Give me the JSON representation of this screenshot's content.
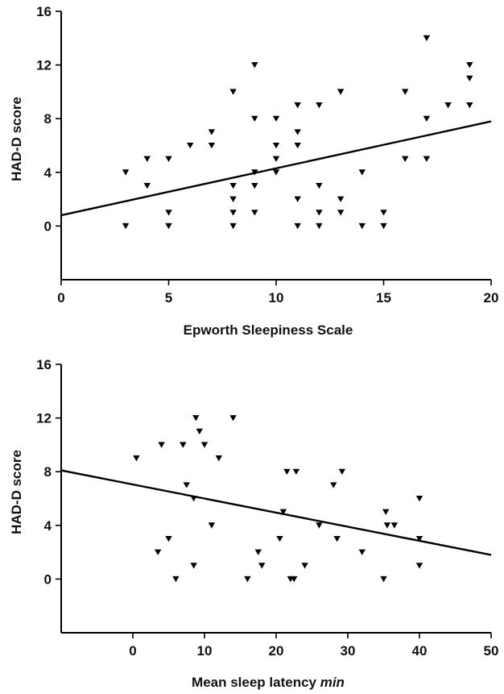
{
  "chart_data": [
    {
      "type": "scatter",
      "xlabel": "Epworth Sleepiness Scale",
      "ylabel": "HAD-D score",
      "xlim": [
        0,
        20
      ],
      "ylim": [
        -4,
        16
      ],
      "xticks": [
        0,
        5,
        10,
        15,
        20
      ],
      "yticks": [
        0,
        4,
        8,
        12,
        16
      ],
      "marker": "triangle-down",
      "grid": false,
      "points": [
        [
          3,
          4
        ],
        [
          3,
          0
        ],
        [
          4,
          5
        ],
        [
          4,
          3
        ],
        [
          5,
          5
        ],
        [
          5,
          1
        ],
        [
          5,
          0
        ],
        [
          6,
          6
        ],
        [
          7,
          7
        ],
        [
          7,
          6
        ],
        [
          8,
          10
        ],
        [
          8,
          3
        ],
        [
          8,
          2
        ],
        [
          8,
          1
        ],
        [
          8,
          0
        ],
        [
          9,
          12
        ],
        [
          9,
          8
        ],
        [
          9,
          4
        ],
        [
          9,
          3
        ],
        [
          9,
          1
        ],
        [
          10,
          8
        ],
        [
          10,
          6
        ],
        [
          10,
          5
        ],
        [
          10,
          4
        ],
        [
          11,
          9
        ],
        [
          11,
          7
        ],
        [
          11,
          6
        ],
        [
          11,
          2
        ],
        [
          11,
          0
        ],
        [
          12,
          9
        ],
        [
          12,
          3
        ],
        [
          12,
          1
        ],
        [
          12,
          0
        ],
        [
          13,
          10
        ],
        [
          13,
          2
        ],
        [
          13,
          1
        ],
        [
          14,
          4
        ],
        [
          14,
          0
        ],
        [
          15,
          1
        ],
        [
          15,
          0
        ],
        [
          16,
          10
        ],
        [
          16,
          5
        ],
        [
          17,
          14
        ],
        [
          17,
          8
        ],
        [
          17,
          5
        ],
        [
          18,
          9
        ],
        [
          19,
          12
        ],
        [
          19,
          11
        ],
        [
          19,
          9
        ]
      ],
      "trendline": {
        "x": [
          0,
          20
        ],
        "y": [
          0.8,
          7.8
        ]
      }
    },
    {
      "type": "scatter",
      "xlabel": "Mean sleep latency",
      "xlabel_unit": "min",
      "ylabel": "HAD-D score",
      "xlim": [
        -10,
        50
      ],
      "ylim": [
        -4,
        16
      ],
      "xticks": [
        0,
        10,
        20,
        30,
        40,
        50
      ],
      "yticks": [
        0,
        4,
        8,
        12,
        16
      ],
      "marker": "triangle-down",
      "grid": false,
      "points": [
        [
          0.5,
          9
        ],
        [
          3.5,
          2
        ],
        [
          4,
          10
        ],
        [
          5,
          3
        ],
        [
          6,
          0
        ],
        [
          7,
          10
        ],
        [
          7.5,
          7
        ],
        [
          8.5,
          6
        ],
        [
          8.5,
          1
        ],
        [
          8.8,
          12
        ],
        [
          9.3,
          11
        ],
        [
          10,
          10
        ],
        [
          11,
          4
        ],
        [
          12,
          9
        ],
        [
          14,
          12
        ],
        [
          16,
          0
        ],
        [
          17.5,
          2
        ],
        [
          18,
          1
        ],
        [
          20.5,
          3
        ],
        [
          21,
          5
        ],
        [
          21.5,
          8
        ],
        [
          22,
          0
        ],
        [
          22.5,
          0
        ],
        [
          22.8,
          8
        ],
        [
          24,
          1
        ],
        [
          26,
          4
        ],
        [
          28,
          7
        ],
        [
          28.5,
          3
        ],
        [
          29.2,
          8
        ],
        [
          32,
          2
        ],
        [
          35,
          0
        ],
        [
          35.3,
          5
        ],
        [
          35.5,
          4
        ],
        [
          36.5,
          4
        ],
        [
          40,
          6
        ],
        [
          40,
          3
        ],
        [
          40,
          1
        ]
      ],
      "trendline": {
        "x": [
          -10,
          50
        ],
        "y": [
          8.1,
          1.8
        ]
      }
    }
  ]
}
